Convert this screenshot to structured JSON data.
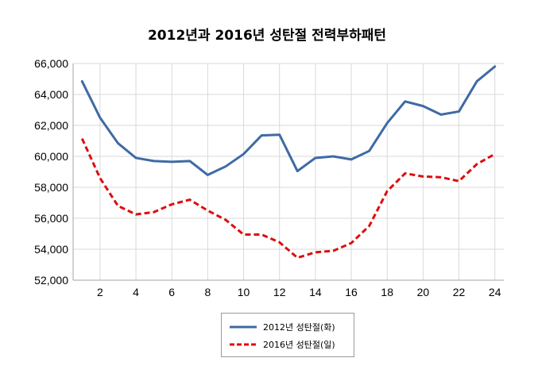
{
  "chart_data": {
    "type": "line",
    "title": "2012년과 2016년 성탄절 전력부하패턴",
    "x": [
      1,
      2,
      3,
      4,
      5,
      6,
      7,
      8,
      9,
      10,
      11,
      12,
      13,
      14,
      15,
      16,
      17,
      18,
      19,
      20,
      21,
      22,
      23,
      24
    ],
    "x_ticks": [
      2,
      4,
      6,
      8,
      10,
      12,
      14,
      16,
      18,
      20,
      22,
      24
    ],
    "ylim": [
      52000,
      66000
    ],
    "y_ticks": [
      52000,
      54000,
      56000,
      58000,
      60000,
      62000,
      64000,
      66000
    ],
    "y_tick_labels": [
      "52,000",
      "54,000",
      "56,000",
      "58,000",
      "60,000",
      "62,000",
      "64,000",
      "66,000"
    ],
    "grid": true,
    "legend_position": "bottom",
    "series": [
      {
        "name": "2012년 성탄절(화)",
        "color": "#3f6aa5",
        "style": "solid",
        "values": [
          64850,
          62500,
          60850,
          59900,
          59700,
          59650,
          59700,
          58800,
          59350,
          60150,
          61350,
          61400,
          59050,
          59900,
          60000,
          59800,
          60350,
          62150,
          63550,
          63250,
          62700,
          62900,
          64850,
          65800
        ]
      },
      {
        "name": "2016년 성탄절(일)",
        "color": "#dd0d0d",
        "style": "dashed",
        "values": [
          61150,
          58600,
          56800,
          56250,
          56400,
          56900,
          57200,
          56500,
          55900,
          54950,
          54950,
          54450,
          53450,
          53800,
          53900,
          54400,
          55500,
          57750,
          58900,
          58700,
          58650,
          58400,
          59500,
          60150
        ]
      }
    ]
  }
}
